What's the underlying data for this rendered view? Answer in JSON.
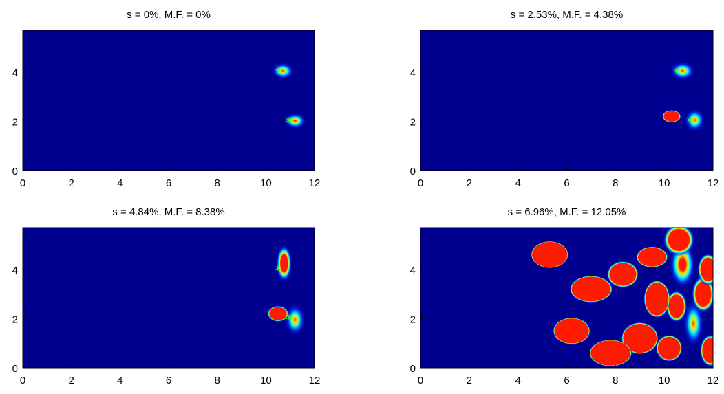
{
  "chart_data": [
    {
      "type": "heatmap",
      "title": "s = 0%, M.F. = 0%",
      "xlim": [
        0,
        12
      ],
      "ylim": [
        0,
        5.7
      ],
      "xticks": [
        0,
        2,
        4,
        6,
        8,
        10,
        12
      ],
      "yticks": [
        0,
        2,
        4
      ],
      "background": "#00008f",
      "markers": [
        {
          "x": 10.5,
          "y": 4.0,
          "symbol": "*",
          "color": "#4dff00"
        },
        {
          "x": 10.95,
          "y": 2.0,
          "symbol": "*",
          "color": "#4dff00"
        }
      ],
      "blobs": [
        {
          "x": 10.7,
          "y": 4.05,
          "sx": 0.22,
          "sy": 0.16,
          "peak": 1.0
        },
        {
          "x": 11.2,
          "y": 2.02,
          "sx": 0.22,
          "sy": 0.15,
          "peak": 0.95
        }
      ]
    },
    {
      "type": "heatmap",
      "title": "s = 2.53%, M.F. = 4.38%",
      "xlim": [
        0,
        12
      ],
      "ylim": [
        0,
        5.7
      ],
      "xticks": [
        0,
        2,
        4,
        6,
        8,
        10,
        12
      ],
      "yticks": [
        0,
        2,
        4
      ],
      "background": "#00008f",
      "markers": [
        {
          "x": 10.5,
          "y": 4.0,
          "symbol": "*",
          "color": "#4dff00"
        },
        {
          "x": 11.05,
          "y": 2.0,
          "symbol": "*",
          "color": "#4dff00"
        }
      ],
      "blobs": [
        {
          "x": 10.75,
          "y": 4.05,
          "sx": 0.24,
          "sy": 0.18,
          "peak": 1.0
        },
        {
          "x": 11.25,
          "y": 2.05,
          "sx": 0.2,
          "sy": 0.22,
          "peak": 1.0
        },
        {
          "x": 10.3,
          "y": 2.2,
          "sx": 0.18,
          "sy": 0.12,
          "peak": 0.2
        }
      ]
    },
    {
      "type": "heatmap",
      "title": "s = 4.84%, M.F. = 8.38%",
      "xlim": [
        0,
        12
      ],
      "ylim": [
        0,
        5.7
      ],
      "xticks": [
        0,
        2,
        4,
        6,
        8,
        10,
        12
      ],
      "yticks": [
        0,
        2,
        4
      ],
      "background": "#00008f",
      "markers": [
        {
          "x": 10.5,
          "y": 4.0,
          "symbol": "*",
          "color": "#4dff00"
        },
        {
          "x": 10.95,
          "y": 2.0,
          "symbol": "*",
          "color": "#4dff00"
        }
      ],
      "blobs": [
        {
          "x": 10.75,
          "y": 4.25,
          "sx": 0.15,
          "sy": 0.35,
          "peak": 0.55
        },
        {
          "x": 11.2,
          "y": 1.95,
          "sx": 0.2,
          "sy": 0.3,
          "peak": 1.0
        },
        {
          "x": 10.5,
          "y": 2.2,
          "sx": 0.2,
          "sy": 0.15,
          "peak": 0.2
        }
      ]
    },
    {
      "type": "heatmap",
      "title": "s = 6.96%, M.F. = 12.05%",
      "xlim": [
        0,
        12
      ],
      "ylim": [
        0,
        5.7
      ],
      "xticks": [
        0,
        2,
        4,
        6,
        8,
        10,
        12
      ],
      "yticks": [
        0,
        2,
        4
      ],
      "background": "#00008f",
      "markers": [],
      "blobs": [
        {
          "x": 10.75,
          "y": 4.2,
          "sx": 0.25,
          "sy": 0.45,
          "peak": 0.75
        },
        {
          "x": 11.2,
          "y": 1.8,
          "sx": 0.2,
          "sy": 0.45,
          "peak": 1.0
        },
        {
          "x": 11.6,
          "y": 3.0,
          "sx": 0.22,
          "sy": 0.35,
          "peak": 0.35
        },
        {
          "x": 10.5,
          "y": 2.5,
          "sx": 0.2,
          "sy": 0.3,
          "peak": 0.3
        },
        {
          "x": 10.6,
          "y": 5.2,
          "sx": 0.3,
          "sy": 0.3,
          "peak": 0.35
        },
        {
          "x": 11.8,
          "y": 4.0,
          "sx": 0.2,
          "sy": 0.3,
          "peak": 0.3
        },
        {
          "x": 8.3,
          "y": 3.8,
          "sx": 0.3,
          "sy": 0.25,
          "peak": 0.18
        },
        {
          "x": 9.5,
          "y": 4.5,
          "sx": 0.3,
          "sy": 0.2,
          "peak": 0.14
        },
        {
          "x": 7.0,
          "y": 3.2,
          "sx": 0.4,
          "sy": 0.25,
          "peak": 0.1
        },
        {
          "x": 6.2,
          "y": 1.5,
          "sx": 0.35,
          "sy": 0.25,
          "peak": 0.09
        },
        {
          "x": 9.0,
          "y": 1.2,
          "sx": 0.35,
          "sy": 0.3,
          "peak": 0.12
        },
        {
          "x": 7.8,
          "y": 0.6,
          "sx": 0.4,
          "sy": 0.25,
          "peak": 0.08
        },
        {
          "x": 9.7,
          "y": 2.8,
          "sx": 0.25,
          "sy": 0.35,
          "peak": 0.15
        },
        {
          "x": 5.3,
          "y": 4.6,
          "sx": 0.35,
          "sy": 0.25,
          "peak": 0.07
        },
        {
          "x": 11.9,
          "y": 0.7,
          "sx": 0.2,
          "sy": 0.3,
          "peak": 0.25
        },
        {
          "x": 10.2,
          "y": 0.8,
          "sx": 0.25,
          "sy": 0.25,
          "peak": 0.18
        }
      ]
    }
  ]
}
